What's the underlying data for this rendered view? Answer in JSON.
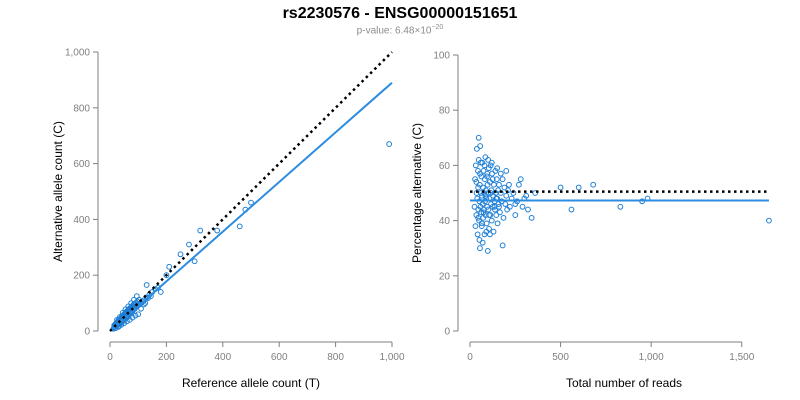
{
  "header": {
    "title": "rs2230576 - ENSG00000151651",
    "pvalue_prefix": "p-value: 6.48×10",
    "pvalue_exponent": "−20"
  },
  "colors": {
    "points": "#1f7fd6",
    "fit_line": "#2b8ce0",
    "reference_line": "#000000",
    "axis": "#7f7f7f"
  },
  "chart_data": [
    {
      "type": "scatter",
      "panel": "left",
      "xlabel": "Reference allele count (T)",
      "ylabel": "Alternative allele count (C)",
      "xlim": [
        0,
        1000
      ],
      "ylim": [
        0,
        1000
      ],
      "xticks": [
        0,
        200,
        400,
        600,
        800,
        1000
      ],
      "xtick_labels": [
        "0",
        "200",
        "400",
        "600",
        "800",
        "1,000"
      ],
      "yticks": [
        0,
        200,
        400,
        600,
        800,
        1000
      ],
      "ytick_labels": [
        "0",
        "200",
        "400",
        "600",
        "800",
        "1,000"
      ],
      "grid": false,
      "reference_line": {
        "style": "dotted",
        "points": [
          [
            0,
            0
          ],
          [
            1000,
            1000
          ]
        ]
      },
      "fit_line": {
        "style": "solid",
        "points": [
          [
            0,
            0
          ],
          [
            1000,
            890
          ]
        ]
      },
      "points": [
        [
          12,
          8
        ],
        [
          15,
          12
        ],
        [
          18,
          15
        ],
        [
          20,
          10
        ],
        [
          22,
          18
        ],
        [
          25,
          20
        ],
        [
          28,
          22
        ],
        [
          30,
          25
        ],
        [
          32,
          18
        ],
        [
          35,
          30
        ],
        [
          38,
          28
        ],
        [
          40,
          35
        ],
        [
          42,
          30
        ],
        [
          45,
          40
        ],
        [
          48,
          38
        ],
        [
          50,
          45
        ],
        [
          52,
          42
        ],
        [
          55,
          50
        ],
        [
          58,
          48
        ],
        [
          60,
          55
        ],
        [
          62,
          50
        ],
        [
          65,
          60
        ],
        [
          68,
          58
        ],
        [
          70,
          62
        ],
        [
          72,
          65
        ],
        [
          75,
          70
        ],
        [
          78,
          66
        ],
        [
          80,
          72
        ],
        [
          85,
          78
        ],
        [
          88,
          80
        ],
        [
          90,
          85
        ],
        [
          95,
          88
        ],
        [
          100,
          92
        ],
        [
          105,
          98
        ],
        [
          110,
          100
        ],
        [
          115,
          105
        ],
        [
          120,
          110
        ],
        [
          20,
          25
        ],
        [
          25,
          30
        ],
        [
          30,
          38
        ],
        [
          35,
          42
        ],
        [
          40,
          48
        ],
        [
          45,
          55
        ],
        [
          50,
          60
        ],
        [
          55,
          65
        ],
        [
          60,
          70
        ],
        [
          65,
          75
        ],
        [
          70,
          80
        ],
        [
          75,
          85
        ],
        [
          80,
          90
        ],
        [
          85,
          95
        ],
        [
          30,
          15
        ],
        [
          40,
          22
        ],
        [
          50,
          28
        ],
        [
          60,
          35
        ],
        [
          70,
          40
        ],
        [
          80,
          48
        ],
        [
          90,
          55
        ],
        [
          100,
          60
        ],
        [
          15,
          20
        ],
        [
          18,
          22
        ],
        [
          22,
          28
        ],
        [
          26,
          32
        ],
        [
          33,
          40
        ],
        [
          37,
          44
        ],
        [
          43,
          52
        ],
        [
          47,
          56
        ],
        [
          53,
          62
        ],
        [
          57,
          68
        ],
        [
          63,
          74
        ],
        [
          67,
          78
        ],
        [
          73,
          84
        ],
        [
          77,
          88
        ],
        [
          83,
          94
        ],
        [
          87,
          98
        ],
        [
          93,
          102
        ],
        [
          97,
          106
        ],
        [
          103,
          112
        ],
        [
          130,
          120
        ],
        [
          140,
          130
        ],
        [
          150,
          140
        ],
        [
          130,
          165
        ],
        [
          180,
          140
        ],
        [
          200,
          200
        ],
        [
          210,
          230
        ],
        [
          250,
          275
        ],
        [
          280,
          310
        ],
        [
          300,
          250
        ],
        [
          320,
          360
        ],
        [
          380,
          360
        ],
        [
          460,
          375
        ],
        [
          480,
          435
        ],
        [
          500,
          460
        ],
        [
          990,
          670
        ],
        [
          110,
          80
        ],
        [
          120,
          95
        ],
        [
          125,
          100
        ],
        [
          135,
          118
        ],
        [
          145,
          125
        ],
        [
          160,
          150
        ],
        [
          170,
          155
        ],
        [
          25,
          40
        ],
        [
          35,
          50
        ],
        [
          45,
          65
        ],
        [
          55,
          78
        ],
        [
          65,
          88
        ],
        [
          75,
          100
        ],
        [
          85,
          112
        ],
        [
          95,
          125
        ]
      ]
    },
    {
      "type": "scatter",
      "panel": "right",
      "xlabel": "Total number of reads",
      "ylabel": "Percentage alternative (C)",
      "xlim": [
        0,
        1700
      ],
      "ylim": [
        0,
        100
      ],
      "xticks": [
        0,
        500,
        1000,
        1500
      ],
      "xtick_labels": [
        "0",
        "500",
        "1,000",
        "1,500"
      ],
      "yticks": [
        0,
        20,
        40,
        60,
        80,
        100
      ],
      "ytick_labels": [
        "0",
        "20",
        "40",
        "60",
        "80",
        "100"
      ],
      "grid": false,
      "reference_line": {
        "style": "dotted",
        "y": 50.5,
        "x_range": [
          0,
          1650
        ]
      },
      "fit_line": {
        "style": "solid",
        "y": 47.3,
        "x_range": [
          0,
          1650
        ]
      },
      "points": [
        [
          25,
          45
        ],
        [
          28,
          55
        ],
        [
          30,
          38
        ],
        [
          32,
          60
        ],
        [
          35,
          42
        ],
        [
          36,
          50
        ],
        [
          38,
          66
        ],
        [
          40,
          48
        ],
        [
          42,
          35
        ],
        [
          44,
          58
        ],
        [
          45,
          52
        ],
        [
          46,
          44
        ],
        [
          48,
          62
        ],
        [
          50,
          40
        ],
        [
          52,
          47
        ],
        [
          54,
          53
        ],
        [
          55,
          30
        ],
        [
          56,
          67
        ],
        [
          58,
          45
        ],
        [
          60,
          50
        ],
        [
          62,
          43
        ],
        [
          63,
          56
        ],
        [
          65,
          38
        ],
        [
          66,
          49
        ],
        [
          68,
          61
        ],
        [
          70,
          46
        ],
        [
          72,
          52
        ],
        [
          73,
          41
        ],
        [
          75,
          58
        ],
        [
          76,
          44
        ],
        [
          78,
          50
        ],
        [
          80,
          35
        ],
        [
          82,
          55
        ],
        [
          83,
          47
        ],
        [
          85,
          63
        ],
        [
          86,
          42
        ],
        [
          88,
          51
        ],
        [
          90,
          48
        ],
        [
          92,
          39
        ],
        [
          94,
          56
        ],
        [
          95,
          45
        ],
        [
          97,
          53
        ],
        [
          98,
          29
        ],
        [
          100,
          50
        ],
        [
          102,
          44
        ],
        [
          104,
          59
        ],
        [
          105,
          37
        ],
        [
          107,
          48
        ],
        [
          110,
          54
        ],
        [
          112,
          42
        ],
        [
          114,
          60
        ],
        [
          116,
          46
        ],
        [
          118,
          51
        ],
        [
          120,
          40
        ],
        [
          122,
          57
        ],
        [
          125,
          45
        ],
        [
          128,
          49
        ],
        [
          130,
          36
        ],
        [
          132,
          53
        ],
        [
          135,
          47
        ],
        [
          138,
          44
        ],
        [
          140,
          58
        ],
        [
          142,
          50
        ],
        [
          145,
          42
        ],
        [
          148,
          55
        ],
        [
          150,
          48
        ],
        [
          152,
          39
        ],
        [
          155,
          51
        ],
        [
          158,
          46
        ],
        [
          160,
          53
        ],
        [
          165,
          43
        ],
        [
          170,
          50
        ],
        [
          175,
          47
        ],
        [
          180,
          55
        ],
        [
          185,
          41
        ],
        [
          190,
          52
        ],
        [
          195,
          46
        ],
        [
          200,
          49
        ],
        [
          205,
          44
        ],
        [
          210,
          51
        ],
        [
          215,
          53
        ],
        [
          220,
          45
        ],
        [
          230,
          48
        ],
        [
          240,
          50
        ],
        [
          250,
          42
        ],
        [
          260,
          47
        ],
        [
          270,
          53
        ],
        [
          280,
          55
        ],
        [
          290,
          45
        ],
        [
          300,
          48
        ],
        [
          310,
          49
        ],
        [
          320,
          44
        ],
        [
          340,
          41
        ],
        [
          360,
          50
        ],
        [
          500,
          52
        ],
        [
          560,
          44
        ],
        [
          600,
          52
        ],
        [
          680,
          53
        ],
        [
          830,
          45
        ],
        [
          950,
          47
        ],
        [
          980,
          48
        ],
        [
          1650,
          40
        ],
        [
          48,
          70
        ],
        [
          52,
          33
        ],
        [
          60,
          61
        ],
        [
          70,
          32
        ],
        [
          80,
          60
        ],
        [
          90,
          36
        ],
        [
          100,
          62
        ],
        [
          110,
          35
        ],
        [
          120,
          61
        ],
        [
          150,
          59
        ],
        [
          180,
          31
        ],
        [
          200,
          58
        ],
        [
          250,
          46
        ],
        [
          35,
          54
        ],
        [
          45,
          41
        ],
        [
          55,
          57
        ],
        [
          65,
          39
        ],
        [
          75,
          43
        ],
        [
          85,
          49
        ],
        [
          95,
          57
        ],
        [
          105,
          42
        ],
        [
          115,
          50
        ],
        [
          125,
          55
        ],
        [
          135,
          45
        ],
        [
          145,
          48
        ],
        [
          160,
          45
        ],
        [
          170,
          57
        ]
      ]
    }
  ]
}
